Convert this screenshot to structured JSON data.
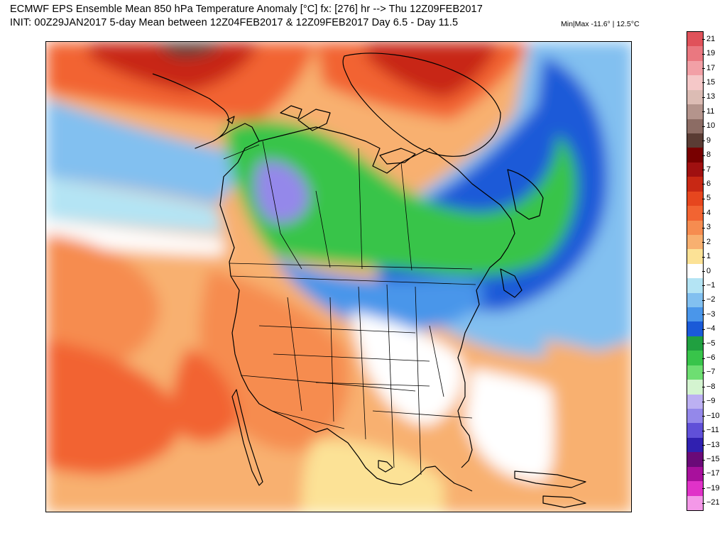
{
  "header": {
    "title": "ECMWF EPS Ensemble Mean 850 hPa Temperature Anomaly [°C] fx: [276] hr --> Thu 12Z09FEB2017",
    "subtitle": "INIT: 00Z29JAN2017 5-day Mean between 12Z04FEB2017 & 12Z09FEB2017    Day 6.5 - Day 11.5",
    "minmax": "Min|Max -11.6° | 12.5°C"
  },
  "legend": {
    "units": "°C",
    "bins": [
      {
        "label": "21",
        "color": "#e0525a"
      },
      {
        "label": "19",
        "color": "#ea7880"
      },
      {
        "label": "17",
        "color": "#f2a0a6"
      },
      {
        "label": "15",
        "color": "#f5c8c8"
      },
      {
        "label": "13",
        "color": "#dcbcb4"
      },
      {
        "label": "11",
        "color": "#b4948c"
      },
      {
        "label": "10",
        "color": "#8c6c64"
      },
      {
        "label": "9",
        "color": "#5a3c34"
      },
      {
        "label": "8",
        "color": "#780000"
      },
      {
        "label": "7",
        "color": "#a01010"
      },
      {
        "label": "6",
        "color": "#c82814"
      },
      {
        "label": "5",
        "color": "#e6461e"
      },
      {
        "label": "4",
        "color": "#f26432"
      },
      {
        "label": "3",
        "color": "#f68c50"
      },
      {
        "label": "2",
        "color": "#f8b070"
      },
      {
        "label": "1",
        "color": "#fce296"
      },
      {
        "label": "0",
        "color": "#ffffff"
      },
      {
        "label": "-1",
        "color": "#b4e4f4"
      },
      {
        "label": "-2",
        "color": "#82c0f0"
      },
      {
        "label": "-3",
        "color": "#4a96ea"
      },
      {
        "label": "-4",
        "color": "#1a5ad8"
      },
      {
        "label": "-5",
        "color": "#20a040"
      },
      {
        "label": "-6",
        "color": "#38c44a"
      },
      {
        "label": "-7",
        "color": "#6ede72"
      },
      {
        "label": "-8",
        "color": "#d4f4d0"
      },
      {
        "label": "-9",
        "color": "#bcb0f2"
      },
      {
        "label": "-10",
        "color": "#9488ea"
      },
      {
        "label": "-11",
        "color": "#6050d8"
      },
      {
        "label": "-13",
        "color": "#3020b0"
      },
      {
        "label": "-15",
        "color": "#6a0a78"
      },
      {
        "label": "-17",
        "color": "#a8109c"
      },
      {
        "label": "-19",
        "color": "#e032c8"
      },
      {
        "label": "-21",
        "color": "#f498e8"
      }
    ]
  }
}
